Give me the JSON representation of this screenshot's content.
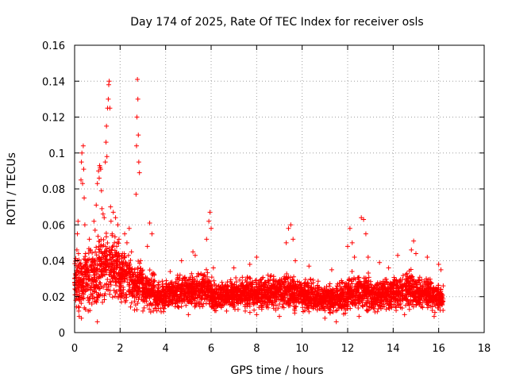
{
  "chart_data": {
    "type": "scatter",
    "title": "Day 174 of 2025, Rate Of TEC Index for receiver osls",
    "xlabel": "GPS time / hours",
    "ylabel": "ROTI / TECUs",
    "xlim": [
      0,
      18
    ],
    "ylim": [
      0,
      0.16
    ],
    "x_ticks": [
      0,
      2,
      4,
      6,
      8,
      10,
      12,
      14,
      16,
      18
    ],
    "x_tick_labels": [
      "0",
      "2",
      "4",
      "6",
      "8",
      "10",
      "12",
      "14",
      "16",
      "18"
    ],
    "y_ticks": [
      0,
      0.02,
      0.04,
      0.06,
      0.08,
      0.1,
      0.12,
      0.14,
      0.16
    ],
    "y_tick_labels": [
      "0",
      "0.02",
      "0.04",
      "0.06",
      "0.08",
      "0.1",
      "0.12",
      "0.14",
      "0.16"
    ],
    "grid": true,
    "marker": "+",
    "color": "#ff0000",
    "series": [
      {
        "name": "ROTI",
        "points": [
          [
            0.02,
            0.021
          ],
          [
            0.05,
            0.018
          ],
          [
            0.08,
            0.032
          ],
          [
            0.1,
            0.046
          ],
          [
            0.12,
            0.055
          ],
          [
            0.15,
            0.062
          ],
          [
            0.18,
            0.012
          ],
          [
            0.2,
            0.009
          ],
          [
            0.22,
            0.028
          ],
          [
            0.25,
            0.038
          ],
          [
            0.28,
            0.085
          ],
          [
            0.3,
            0.095
          ],
          [
            0.32,
            0.1
          ],
          [
            0.35,
            0.083
          ],
          [
            0.38,
            0.104
          ],
          [
            0.4,
            0.091
          ],
          [
            0.42,
            0.075
          ],
          [
            0.45,
            0.06
          ],
          [
            0.48,
            0.044
          ],
          [
            0.5,
            0.03
          ],
          [
            0.55,
            0.024
          ],
          [
            0.6,
            0.018
          ],
          [
            0.65,
            0.052
          ],
          [
            0.7,
            0.046
          ],
          [
            0.75,
            0.035
          ],
          [
            0.8,
            0.041
          ],
          [
            0.85,
            0.062
          ],
          [
            0.9,
            0.057
          ],
          [
            0.95,
            0.071
          ],
          [
            1.0,
            0.083
          ],
          [
            1.05,
            0.09
          ],
          [
            1.08,
            0.086
          ],
          [
            1.1,
            0.093
          ],
          [
            1.12,
            0.092
          ],
          [
            1.15,
            0.091
          ],
          [
            1.18,
            0.079
          ],
          [
            1.2,
            0.069
          ],
          [
            1.25,
            0.066
          ],
          [
            1.3,
            0.064
          ],
          [
            1.35,
            0.095
          ],
          [
            1.38,
            0.106
          ],
          [
            1.4,
            0.115
          ],
          [
            1.42,
            0.098
          ],
          [
            1.45,
            0.125
          ],
          [
            1.48,
            0.13
          ],
          [
            1.5,
            0.138
          ],
          [
            1.52,
            0.14
          ],
          [
            1.55,
            0.125
          ],
          [
            1.58,
            0.07
          ],
          [
            1.6,
            0.062
          ],
          [
            1.65,
            0.055
          ],
          [
            1.7,
            0.067
          ],
          [
            1.75,
            0.05
          ],
          [
            1.8,
            0.064
          ],
          [
            1.85,
            0.048
          ],
          [
            1.9,
            0.06
          ],
          [
            1.95,
            0.052
          ],
          [
            2.0,
            0.038
          ],
          [
            2.1,
            0.044
          ],
          [
            2.2,
            0.055
          ],
          [
            2.3,
            0.05
          ],
          [
            2.4,
            0.058
          ],
          [
            2.5,
            0.045
          ],
          [
            2.6,
            0.032
          ],
          [
            2.7,
            0.077
          ],
          [
            2.72,
            0.104
          ],
          [
            2.74,
            0.12
          ],
          [
            2.76,
            0.141
          ],
          [
            2.78,
            0.13
          ],
          [
            2.8,
            0.11
          ],
          [
            2.82,
            0.095
          ],
          [
            2.85,
            0.089
          ],
          [
            2.9,
            0.04
          ],
          [
            3.0,
            0.03
          ],
          [
            3.2,
            0.048
          ],
          [
            3.3,
            0.061
          ],
          [
            3.4,
            0.055
          ],
          [
            3.5,
            0.032
          ],
          [
            3.7,
            0.028
          ],
          [
            4.2,
            0.034
          ],
          [
            4.7,
            0.04
          ],
          [
            5.2,
            0.045
          ],
          [
            5.3,
            0.043
          ],
          [
            5.8,
            0.052
          ],
          [
            5.9,
            0.062
          ],
          [
            5.95,
            0.067
          ],
          [
            6.0,
            0.058
          ],
          [
            6.1,
            0.036
          ],
          [
            7.0,
            0.036
          ],
          [
            7.7,
            0.038
          ],
          [
            8.0,
            0.042
          ],
          [
            8.5,
            0.032
          ],
          [
            9.3,
            0.05
          ],
          [
            9.4,
            0.058
          ],
          [
            9.5,
            0.06
          ],
          [
            9.6,
            0.052
          ],
          [
            9.7,
            0.04
          ],
          [
            10.3,
            0.037
          ],
          [
            11.3,
            0.035
          ],
          [
            12.0,
            0.048
          ],
          [
            12.1,
            0.058
          ],
          [
            12.2,
            0.05
          ],
          [
            12.3,
            0.042
          ],
          [
            12.6,
            0.064
          ],
          [
            12.7,
            0.063
          ],
          [
            12.8,
            0.055
          ],
          [
            12.9,
            0.042
          ],
          [
            13.4,
            0.039
          ],
          [
            13.8,
            0.036
          ],
          [
            14.2,
            0.043
          ],
          [
            14.8,
            0.046
          ],
          [
            14.9,
            0.051
          ],
          [
            15.0,
            0.044
          ],
          [
            15.5,
            0.042
          ],
          [
            16.0,
            0.038
          ],
          [
            16.1,
            0.035
          ],
          [
            16.2,
            0.026
          ],
          [
            0.3,
            0.008
          ],
          [
            3.0,
            0.012
          ],
          [
            5.0,
            0.01
          ],
          [
            7.5,
            0.012
          ],
          [
            9.0,
            0.009
          ],
          [
            11.0,
            0.008
          ],
          [
            11.5,
            0.006
          ],
          [
            12.5,
            0.009
          ],
          [
            14.5,
            0.01
          ],
          [
            15.8,
            0.009
          ],
          [
            1.0,
            0.006
          ],
          [
            0.6,
            0.012
          ],
          [
            8.0,
            0.01
          ]
        ]
      }
    ],
    "bands": [
      {
        "x_start": 0.0,
        "x_end": 0.5,
        "y_min": 0.008,
        "y_max": 0.045
      },
      {
        "x_start": 0.5,
        "x_end": 1.0,
        "y_min": 0.01,
        "y_max": 0.05
      },
      {
        "x_start": 1.0,
        "x_end": 1.5,
        "y_min": 0.011,
        "y_max": 0.058
      },
      {
        "x_start": 1.5,
        "x_end": 2.0,
        "y_min": 0.011,
        "y_max": 0.055
      },
      {
        "x_start": 2.0,
        "x_end": 2.5,
        "y_min": 0.011,
        "y_max": 0.048
      },
      {
        "x_start": 2.5,
        "x_end": 3.0,
        "y_min": 0.01,
        "y_max": 0.04
      },
      {
        "x_start": 3.0,
        "x_end": 3.5,
        "y_min": 0.01,
        "y_max": 0.035
      },
      {
        "x_start": 3.5,
        "x_end": 4.0,
        "y_min": 0.01,
        "y_max": 0.028
      },
      {
        "x_start": 4.0,
        "x_end": 4.5,
        "y_min": 0.011,
        "y_max": 0.03
      },
      {
        "x_start": 4.5,
        "x_end": 5.0,
        "y_min": 0.011,
        "y_max": 0.033
      },
      {
        "x_start": 5.0,
        "x_end": 5.5,
        "y_min": 0.011,
        "y_max": 0.033
      },
      {
        "x_start": 5.5,
        "x_end": 6.0,
        "y_min": 0.011,
        "y_max": 0.035
      },
      {
        "x_start": 6.0,
        "x_end": 6.5,
        "y_min": 0.01,
        "y_max": 0.03
      },
      {
        "x_start": 6.5,
        "x_end": 7.0,
        "y_min": 0.01,
        "y_max": 0.03
      },
      {
        "x_start": 7.0,
        "x_end": 7.5,
        "y_min": 0.01,
        "y_max": 0.03
      },
      {
        "x_start": 7.5,
        "x_end": 8.0,
        "y_min": 0.01,
        "y_max": 0.031
      },
      {
        "x_start": 8.0,
        "x_end": 8.5,
        "y_min": 0.01,
        "y_max": 0.032
      },
      {
        "x_start": 8.5,
        "x_end": 9.0,
        "y_min": 0.01,
        "y_max": 0.032
      },
      {
        "x_start": 9.0,
        "x_end": 9.5,
        "y_min": 0.01,
        "y_max": 0.034
      },
      {
        "x_start": 9.5,
        "x_end": 10.0,
        "y_min": 0.01,
        "y_max": 0.033
      },
      {
        "x_start": 10.0,
        "x_end": 10.5,
        "y_min": 0.009,
        "y_max": 0.03
      },
      {
        "x_start": 10.5,
        "x_end": 11.0,
        "y_min": 0.009,
        "y_max": 0.028
      },
      {
        "x_start": 11.0,
        "x_end": 11.5,
        "y_min": 0.008,
        "y_max": 0.028
      },
      {
        "x_start": 11.5,
        "x_end": 12.0,
        "y_min": 0.008,
        "y_max": 0.03
      },
      {
        "x_start": 12.0,
        "x_end": 12.5,
        "y_min": 0.009,
        "y_max": 0.033
      },
      {
        "x_start": 12.5,
        "x_end": 13.0,
        "y_min": 0.009,
        "y_max": 0.033
      },
      {
        "x_start": 13.0,
        "x_end": 13.5,
        "y_min": 0.009,
        "y_max": 0.03
      },
      {
        "x_start": 13.5,
        "x_end": 14.0,
        "y_min": 0.01,
        "y_max": 0.031
      },
      {
        "x_start": 14.0,
        "x_end": 14.5,
        "y_min": 0.01,
        "y_max": 0.033
      },
      {
        "x_start": 14.5,
        "x_end": 15.0,
        "y_min": 0.01,
        "y_max": 0.035
      },
      {
        "x_start": 15.0,
        "x_end": 15.5,
        "y_min": 0.01,
        "y_max": 0.032
      },
      {
        "x_start": 15.5,
        "x_end": 16.0,
        "y_min": 0.01,
        "y_max": 0.03
      },
      {
        "x_start": 16.0,
        "x_end": 16.2,
        "y_min": 0.01,
        "y_max": 0.027
      }
    ],
    "band_density_per_hour": 240
  }
}
